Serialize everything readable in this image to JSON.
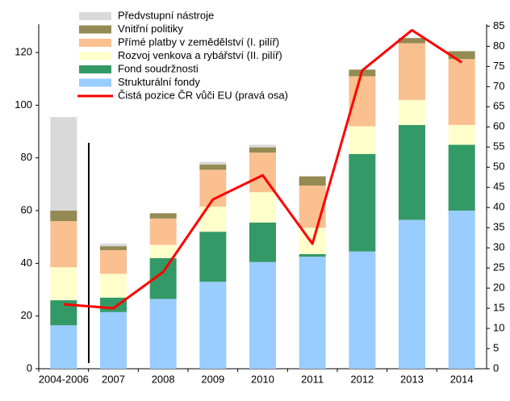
{
  "chart_data": {
    "type": "bar",
    "categories": [
      "2004-2006",
      "2007",
      "2008",
      "2009",
      "2010",
      "2011",
      "2012",
      "2013",
      "2014"
    ],
    "series": [
      {
        "name": "Předvstupní nástroje",
        "color": "#d9d9d9",
        "values": [
          35.5,
          1,
          0,
          1,
          1,
          0,
          0,
          0,
          0
        ]
      },
      {
        "name": "Vnitřní politiky",
        "color": "#948a54",
        "values": [
          4,
          1.5,
          2,
          2,
          2,
          3.5,
          2.5,
          2,
          3
        ]
      },
      {
        "name": "Přímé platby v zemědělství  (I. pilíř)",
        "color": "#fac090",
        "values": [
          17.5,
          9,
          10,
          14,
          15,
          16,
          19,
          21.5,
          25
        ]
      },
      {
        "name": "Rozvoj venkova a  rybářství (II. pilíř)",
        "color": "#ffffcc",
        "values": [
          12.5,
          9,
          5,
          9.5,
          11.5,
          10,
          10.5,
          9.5,
          7.5
        ]
      },
      {
        "name": "Fond soudržnosti",
        "color": "#339966",
        "values": [
          9.5,
          5.5,
          15.5,
          19,
          15,
          1,
          37,
          36,
          25
        ]
      },
      {
        "name": "Strukturální fondy",
        "color": "#99ccff",
        "values": [
          16.5,
          21.5,
          26.5,
          33,
          40.5,
          42.5,
          44.5,
          56.5,
          60
        ]
      },
      {
        "name": "Čistá pozice ČR vůči EU (pravá osa)",
        "color": "#ff0000",
        "type": "line",
        "axis": "y2",
        "values": [
          16,
          15,
          24,
          42,
          48,
          31,
          74,
          84,
          76
        ]
      }
    ],
    "ylim": [
      0,
      130
    ],
    "yticks": [
      0,
      20,
      40,
      60,
      80,
      100,
      120
    ],
    "y2lim": [
      0,
      85
    ],
    "y2ticks": [
      0,
      5,
      10,
      15,
      20,
      25,
      30,
      35,
      40,
      45,
      50,
      55,
      60,
      65,
      70,
      75,
      80,
      85
    ],
    "grid": false
  }
}
